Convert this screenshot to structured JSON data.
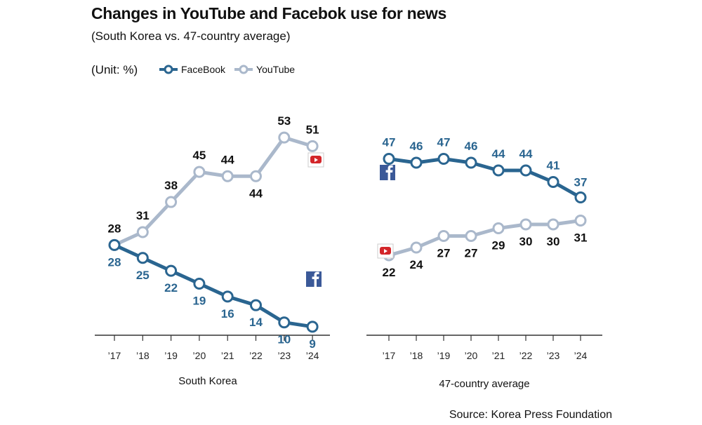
{
  "title": "Changes in YouTube and Facebok use for news",
  "subtitle": "(South Korea vs. 47-country average)",
  "unit": "(Unit: %)",
  "source": "Source: Korea Press Foundation",
  "colors": {
    "facebook": "#2a6590",
    "youtube": "#aab8cb",
    "youtube_icon": "#d3262a",
    "facebook_icon": "#3b5998"
  },
  "legend": [
    {
      "name": "FaceBook",
      "color": "#2a6590"
    },
    {
      "name": "YouTube",
      "color": "#aab8cb"
    }
  ],
  "chart_data": [
    {
      "type": "line",
      "xlabel": "South Korea",
      "categories": [
        "’17",
        "’18",
        "’19",
        "’20",
        "’21",
        "’22",
        "’23",
        "’24"
      ],
      "ylim": [
        0,
        60
      ],
      "series": [
        {
          "name": "FaceBook",
          "values": [
            28,
            25,
            22,
            19,
            16,
            14,
            10,
            9
          ]
        },
        {
          "name": "YouTube",
          "values": [
            28,
            31,
            38,
            45,
            44,
            44,
            53,
            51
          ]
        }
      ]
    },
    {
      "type": "line",
      "xlabel": "47-country average",
      "categories": [
        "’17",
        "’18",
        "’19",
        "’20",
        "’21",
        "’22",
        "’23",
        "’24"
      ],
      "ylim": [
        0,
        60
      ],
      "series": [
        {
          "name": "FaceBook",
          "values": [
            47,
            46,
            47,
            46,
            44,
            44,
            41,
            37
          ]
        },
        {
          "name": "YouTube",
          "values": [
            22,
            24,
            27,
            27,
            29,
            30,
            30,
            31
          ]
        }
      ]
    }
  ]
}
